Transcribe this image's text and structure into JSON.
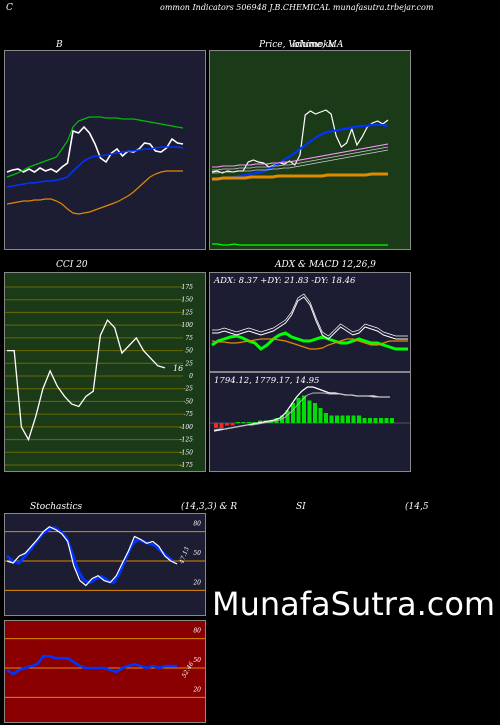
{
  "header": {
    "left": "C",
    "title": "ommon  Indicators 506948 J.B.CHEMICAL  munafasutra.trbejar.com"
  },
  "watermark": "MunafaSutra.com",
  "colors": {
    "bg": "#000000",
    "panel_navy": "#1c1c33",
    "panel_green": "#1a3a18",
    "panel_red": "#8a0000",
    "price": "#ffffff",
    "ma_blue": "#0033ff",
    "band_green": "#00c000",
    "band_orange": "#e08a00",
    "grid_olive": "#6b6b00",
    "adx_green": "#00ff00",
    "macd_hist": "#00dd00"
  },
  "chart_data": [
    {
      "type": "line",
      "panel": "bollinger",
      "title": "B",
      "series": [
        {
          "color": "#ffffff",
          "values": [
            173,
            171,
            170,
            173,
            170,
            173,
            169,
            172,
            170,
            173,
            168,
            164,
            132,
            134,
            128,
            134,
            145,
            159,
            163,
            154,
            150,
            157,
            152,
            153,
            150,
            144,
            145,
            152,
            153,
            149,
            140,
            144,
            145
          ]
        },
        {
          "color": "#0033ff",
          "values": [
            188,
            187,
            186,
            185,
            184,
            184,
            183,
            182,
            182,
            181,
            180,
            178,
            172,
            167,
            162,
            159,
            157,
            157,
            156,
            155,
            154,
            153,
            152,
            152,
            151,
            150,
            150,
            149,
            148,
            148,
            148,
            148,
            149
          ]
        },
        {
          "color": "#00c000",
          "values": [
            178,
            176,
            174,
            171,
            168,
            166,
            164,
            162,
            160,
            158,
            150,
            142,
            128,
            122,
            120,
            118,
            118,
            118,
            119,
            119,
            119,
            120,
            120,
            120,
            121,
            122,
            123,
            124,
            125,
            126,
            127,
            128,
            129
          ]
        },
        {
          "color": "#e08a00",
          "values": [
            205,
            204,
            203,
            202,
            202,
            201,
            201,
            200,
            200,
            202,
            205,
            210,
            214,
            215,
            214,
            213,
            211,
            209,
            207,
            205,
            203,
            200,
            197,
            193,
            188,
            183,
            178,
            175,
            173,
            172,
            172,
            172,
            172
          ]
        }
      ]
    },
    {
      "type": "line",
      "panel": "price_ma",
      "title": "Price,  Volume,  MA",
      "overlay_title": "Ichimoku",
      "series": [
        {
          "color": "#ffffff",
          "values": [
            173,
            172,
            174,
            172,
            173,
            172,
            172,
            163,
            161,
            163,
            164,
            168,
            166,
            164,
            165,
            162,
            166,
            156,
            116,
            112,
            115,
            113,
            111,
            115,
            137,
            148,
            144,
            130,
            146,
            138,
            128,
            124,
            122,
            125,
            121
          ]
        },
        {
          "color": "#0033ff",
          "values": [
            181,
            180,
            180,
            179,
            178,
            177,
            176,
            175,
            174,
            173,
            171,
            168,
            165,
            161,
            158,
            154,
            150,
            146,
            142,
            138,
            135,
            133,
            132,
            131,
            130,
            129,
            128,
            127,
            127,
            126,
            126,
            126,
            127
          ]
        },
        {
          "color": "#ffb0ff",
          "values": [
            168,
            168,
            167,
            167,
            167,
            166,
            166,
            166,
            165,
            165,
            165,
            164,
            164,
            163,
            163,
            162,
            161,
            160,
            159,
            158,
            157,
            156,
            155,
            154,
            153,
            152,
            151,
            150,
            149,
            148,
            147,
            146,
            145
          ]
        },
        {
          "color": "#e08a00",
          "values": [
            180,
            180,
            179,
            179,
            179,
            179,
            179,
            178,
            178,
            178,
            178,
            178,
            177,
            177,
            177,
            177,
            177,
            177,
            177,
            177,
            177,
            176,
            176,
            176,
            176,
            176,
            176,
            176,
            176,
            175,
            175,
            175,
            175
          ]
        },
        {
          "color": "#00ff00",
          "values": [
            245,
            245,
            246,
            246,
            245,
            246,
            246,
            246,
            246,
            246,
            246,
            246,
            246,
            246,
            246,
            246,
            246,
            246,
            246,
            246,
            246,
            246,
            246,
            246,
            246,
            246,
            246,
            246,
            246,
            246,
            246,
            246,
            246
          ]
        }
      ]
    },
    {
      "type": "line",
      "panel": "cci",
      "title": "CCI 20",
      "yticks": [
        "175",
        "150",
        "125",
        "100",
        "75",
        "50",
        "25",
        "0",
        "-25",
        "-50",
        "-75",
        "-100",
        "-125",
        "-150",
        "-175"
      ],
      "last_value_label": "16",
      "series": [
        {
          "color": "#ffffff",
          "values": [
            50,
            50,
            -100,
            -125,
            -80,
            -25,
            10,
            -20,
            -40,
            -55,
            -60,
            -40,
            -30,
            80,
            110,
            95,
            45,
            60,
            75,
            50,
            35,
            20,
            16
          ]
        }
      ]
    },
    {
      "type": "line",
      "panel": "adx",
      "title": "ADX  & MACD 12,26,9",
      "readout": "ADX: 8.37  +DY: 21.83  -DY: 18.46",
      "series": [
        {
          "color": "#00ff00",
          "values": [
            18,
            22,
            24,
            26,
            27,
            25,
            22,
            20,
            14,
            18,
            24,
            28,
            30,
            26,
            24,
            22,
            22,
            24,
            26,
            24,
            22,
            20,
            20,
            22,
            24,
            22,
            20,
            20,
            18,
            16,
            14,
            14,
            14
          ]
        },
        {
          "color": "#e08a00",
          "values": [
            22,
            21,
            21,
            20,
            20,
            21,
            22,
            23,
            24,
            24,
            24,
            23,
            22,
            20,
            18,
            16,
            14,
            14,
            15,
            18,
            20,
            22,
            24,
            24,
            22,
            20,
            18,
            18,
            20,
            22,
            22,
            22,
            22
          ]
        },
        {
          "color": "#ffffff",
          "values": [
            30,
            30,
            32,
            30,
            28,
            30,
            32,
            30,
            28,
            30,
            32,
            36,
            40,
            48,
            62,
            66,
            58,
            42,
            28,
            24,
            30,
            36,
            32,
            28,
            30,
            36,
            34,
            32,
            28,
            26,
            24,
            24,
            24
          ]
        }
      ]
    },
    {
      "type": "bar",
      "panel": "macd",
      "title": "MACD",
      "readout": "1794.12,  1779.17,  14.95",
      "series": [
        {
          "color": "#ffffff",
          "values": [
            -8,
            -7,
            -6,
            -5,
            -4,
            -3,
            -2,
            -1,
            0,
            1,
            2,
            3,
            5,
            10,
            18,
            26,
            32,
            36,
            36,
            34,
            32,
            30,
            30,
            29,
            28,
            28,
            27,
            27,
            27,
            27,
            26,
            26,
            26
          ]
        },
        {
          "color": "#dddddd",
          "values": [
            -7,
            -6,
            -6,
            -5,
            -4,
            -3,
            -2,
            -2,
            -1,
            0,
            1,
            2,
            3,
            6,
            11,
            17,
            23,
            28,
            30,
            30,
            30,
            29,
            29,
            29,
            28,
            28,
            27,
            27,
            27,
            26,
            26,
            26,
            26
          ]
        },
        {
          "color": "#00dd00",
          "values": [
            -2,
            -2,
            -1,
            -1,
            0,
            0,
            0,
            0,
            1,
            1,
            1,
            2,
            3,
            5,
            8,
            10,
            11,
            9,
            8,
            6,
            4,
            3,
            3,
            3,
            3,
            3,
            3,
            2,
            2,
            2,
            2,
            2,
            2
          ]
        }
      ]
    },
    {
      "type": "line",
      "panel": "stochastics",
      "title": "Stochastics",
      "params": "(14,3,3) & R",
      "yticks": [
        "80",
        "50",
        "20"
      ],
      "last_value_label": "47.13",
      "series": [
        {
          "color": "#ffffff",
          "values": [
            50,
            48,
            55,
            58,
            65,
            72,
            80,
            85,
            82,
            78,
            70,
            45,
            30,
            25,
            32,
            35,
            30,
            28,
            35,
            48,
            60,
            75,
            72,
            68,
            70,
            65,
            55,
            50,
            47
          ]
        },
        {
          "color": "#0033ff",
          "values": [
            55,
            50,
            48,
            55,
            62,
            70,
            78,
            82,
            84,
            80,
            74,
            58,
            40,
            30,
            28,
            32,
            34,
            30,
            28,
            38,
            52,
            66,
            72,
            70,
            68,
            66,
            60,
            55,
            50
          ]
        }
      ]
    },
    {
      "type": "line",
      "panel": "rsi",
      "title": "SI",
      "params": "(14,5",
      "yticks": [
        "80",
        "50",
        "20"
      ],
      "last_value_label": "52.46",
      "series": [
        {
          "color": "#0033ff",
          "values": [
            48,
            44,
            48,
            50,
            52,
            54,
            62,
            62,
            60,
            60,
            60,
            56,
            52,
            50,
            50,
            50,
            50,
            48,
            46,
            50,
            52,
            54,
            52,
            50,
            52,
            50,
            52,
            52,
            52
          ]
        }
      ]
    }
  ]
}
